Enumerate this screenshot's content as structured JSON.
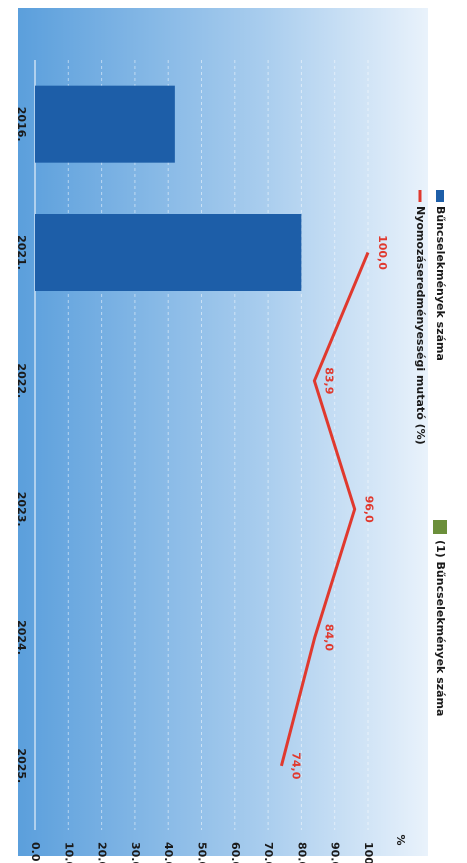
{
  "chart_data": {
    "type": "bar",
    "categories": [
      "2016.",
      "2021.",
      "2022.",
      "2023.",
      "2024.",
      "2025."
    ],
    "series": [
      {
        "name": "Bűncselekmények száma",
        "type": "bar",
        "color": "#1d5ea8",
        "values": [
          42,
          80,
          null,
          null,
          null,
          null
        ]
      },
      {
        "name": "Nyomozáseredményességi mutató (%)",
        "type": "line",
        "color": "#e0392e",
        "values": [
          null,
          100,
          83.9,
          96,
          84,
          74
        ],
        "value_labels": [
          null,
          "100,0",
          "83,9",
          "96,0",
          "84,0",
          "74,0"
        ]
      }
    ],
    "ylim": [
      0,
      100
    ],
    "yticks": [
      {
        "value": 0,
        "label": "0.0"
      },
      {
        "value": 10,
        "label": "10.0"
      },
      {
        "value": 20,
        "label": "20.0"
      },
      {
        "value": 30,
        "label": "30.0"
      },
      {
        "value": 40,
        "label": "40.0"
      },
      {
        "value": 50,
        "label": "50.0"
      },
      {
        "value": 60,
        "label": "60.0"
      },
      {
        "value": 70,
        "label": "70.0"
      },
      {
        "value": 80,
        "label": "80.0"
      },
      {
        "value": 90,
        "label": "90.0"
      },
      {
        "value": 100,
        "label": "100.0"
      }
    ],
    "y_label": "%",
    "annotation": "(1) Bűncselekmények száma",
    "grid": true
  }
}
